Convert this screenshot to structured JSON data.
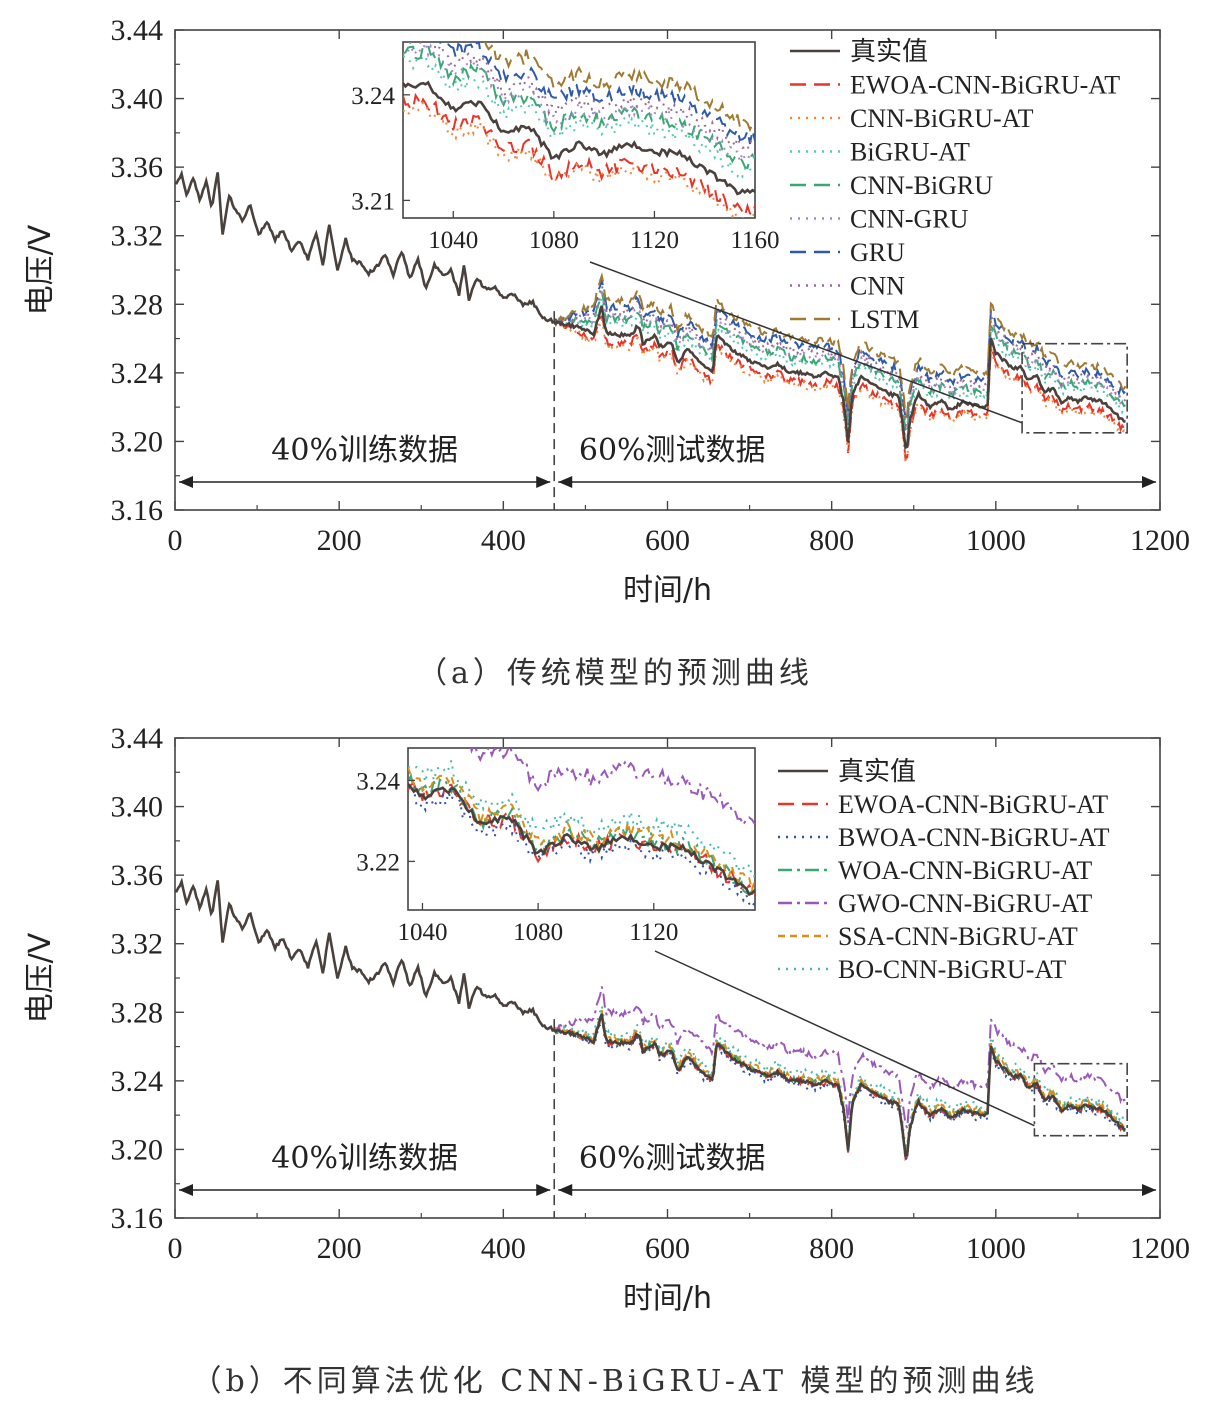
{
  "chart_data": [
    {
      "id": "a",
      "type": "line",
      "caption": "（a）传统模型的预测曲线",
      "xlabel": "时间/h",
      "ylabel": "电压/V",
      "xlim": [
        0,
        1200
      ],
      "ylim": [
        3.16,
        3.44
      ],
      "xticks": [
        "0",
        "200",
        "400",
        "600",
        "800",
        "1000",
        "1200"
      ],
      "yticks": [
        "3.16",
        "3.20",
        "3.24",
        "3.28",
        "3.32",
        "3.36",
        "3.40",
        "3.44"
      ],
      "split_x": 462,
      "train_label": "40%训练数据",
      "test_label": "60%测试数据",
      "true_series": {
        "name": "真实值",
        "color": "#4a403c",
        "dash": "solid"
      },
      "series": [
        {
          "name": "EWOA-CNN-BiGRU-AT",
          "color": "#e8352a",
          "dash": "long",
          "offset": -0.005
        },
        {
          "name": "CNN-BiGRU-AT",
          "color": "#f0883a",
          "dash": "dot",
          "offset": -0.007
        },
        {
          "name": "BiGRU-AT",
          "color": "#5ac8b4",
          "dash": "dot",
          "offset": 0.006
        },
        {
          "name": "CNN-BiGRU",
          "color": "#3aa874",
          "dash": "long",
          "offset": 0.009
        },
        {
          "name": "CNN-GRU",
          "color": "#a888c8",
          "dash": "dot",
          "offset": 0.01
        },
        {
          "name": "GRU",
          "color": "#2f5aa8",
          "dash": "long",
          "offset": 0.016
        },
        {
          "name": "CNN",
          "color": "#9a6a9a",
          "dash": "dot",
          "offset": 0.013
        },
        {
          "name": "LSTM",
          "color": "#a07a30",
          "dash": "long",
          "offset": 0.02
        }
      ],
      "inset": {
        "xlim": [
          1020,
          1160
        ],
        "ylim": [
          3.205,
          3.255
        ],
        "xticks": [
          "1040",
          "1080",
          "1120",
          "1160"
        ],
        "yticks": [
          "3.21",
          "3.24"
        ]
      }
    },
    {
      "id": "b",
      "type": "line",
      "caption": "（b）不同算法优化 CNN-BiGRU-AT 模型的预测曲线",
      "xlabel": "时间/h",
      "ylabel": "电压/V",
      "xlim": [
        0,
        1200
      ],
      "ylim": [
        3.16,
        3.44
      ],
      "xticks": [
        "0",
        "200",
        "400",
        "600",
        "800",
        "1000",
        "1200"
      ],
      "yticks": [
        "3.16",
        "3.20",
        "3.24",
        "3.28",
        "3.32",
        "3.36",
        "3.40",
        "3.44"
      ],
      "split_x": 462,
      "train_label": "40%训练数据",
      "test_label": "60%测试数据",
      "true_series": {
        "name": "真实值",
        "color": "#4a403c",
        "dash": "solid"
      },
      "series": [
        {
          "name": "EWOA-CNN-BiGRU-AT",
          "color": "#e8352a",
          "dash": "long",
          "offset": 0.0
        },
        {
          "name": "BWOA-CNN-BiGRU-AT",
          "color": "#3050b0",
          "dash": "dot",
          "offset": -0.002
        },
        {
          "name": "WOA-CNN-BiGRU-AT",
          "color": "#3aa874",
          "dash": "dashdot",
          "offset": 0.001
        },
        {
          "name": "GWO-CNN-BiGRU-AT",
          "color": "#9a58b8",
          "dash": "dashdot",
          "offset": 0.017
        },
        {
          "name": "SSA-CNN-BiGRU-AT",
          "color": "#d8901a",
          "dash": "short",
          "offset": 0.002
        },
        {
          "name": "BO-CNN-BiGRU-AT",
          "color": "#4ab8b0",
          "dash": "dot",
          "offset": 0.005
        }
      ],
      "inset": {
        "xlim": [
          1035,
          1155
        ],
        "ylim": [
          3.208,
          3.248
        ],
        "xticks": [
          "1040",
          "1080",
          "1120"
        ],
        "yticks": [
          "3.22",
          "3.24"
        ]
      }
    }
  ]
}
